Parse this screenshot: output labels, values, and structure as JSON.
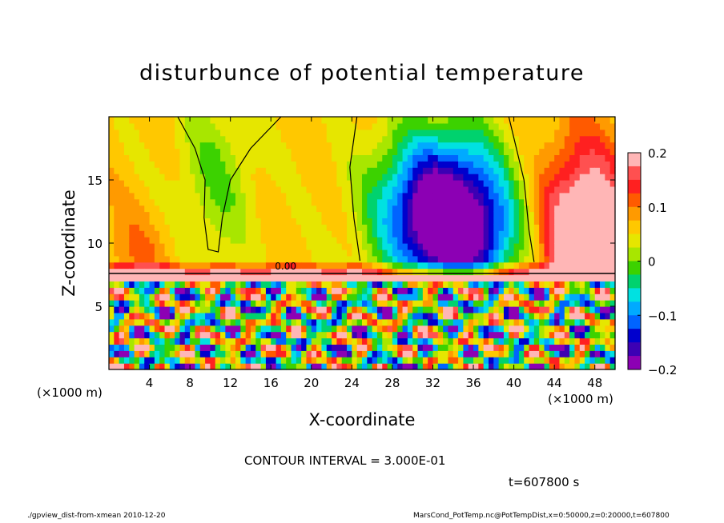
{
  "chart_data": {
    "type": "heatmap",
    "title": "disturbunce of potential temperature",
    "xlabel": "X-coordinate",
    "ylabel": "Z-coordinate",
    "x_unit_left": "(×1000 m)",
    "x_unit_right": "(×1000 m)",
    "xlim": [
      0,
      50
    ],
    "ylim": [
      0,
      20
    ],
    "xticks": [
      4,
      8,
      12,
      16,
      20,
      24,
      28,
      32,
      36,
      40,
      44,
      48
    ],
    "yticks": [
      5,
      10,
      15
    ],
    "colorbar": {
      "range": [
        -0.2,
        0.2
      ],
      "ticks": [
        0.2,
        0.1,
        0,
        -0.1,
        -0.2
      ],
      "tick_labels": [
        "0.2",
        "0.1",
        "0",
        "−0.1",
        "−0.2"
      ],
      "colors": [
        "#ffb6b6",
        "#ff5050",
        "#ff2020",
        "#ff5a00",
        "#ff9a00",
        "#ffc800",
        "#e6e600",
        "#a8e600",
        "#3cd200",
        "#00d26e",
        "#00e1e1",
        "#00aaff",
        "#0064ff",
        "#0000cd",
        "#3c00b4",
        "#8c00b4"
      ]
    },
    "contour_label": "0.00",
    "contour_interval_text": "CONTOUR INTERVAL = 3.000E-01",
    "time_text": "t=607800 s"
  },
  "footer": {
    "left": "./gpview_dist-from-xmean  2010-12-20",
    "right": "MarsCond_PotTemp.nc@PotTempDist,x=0:50000,z=0:20000,t=607800"
  }
}
